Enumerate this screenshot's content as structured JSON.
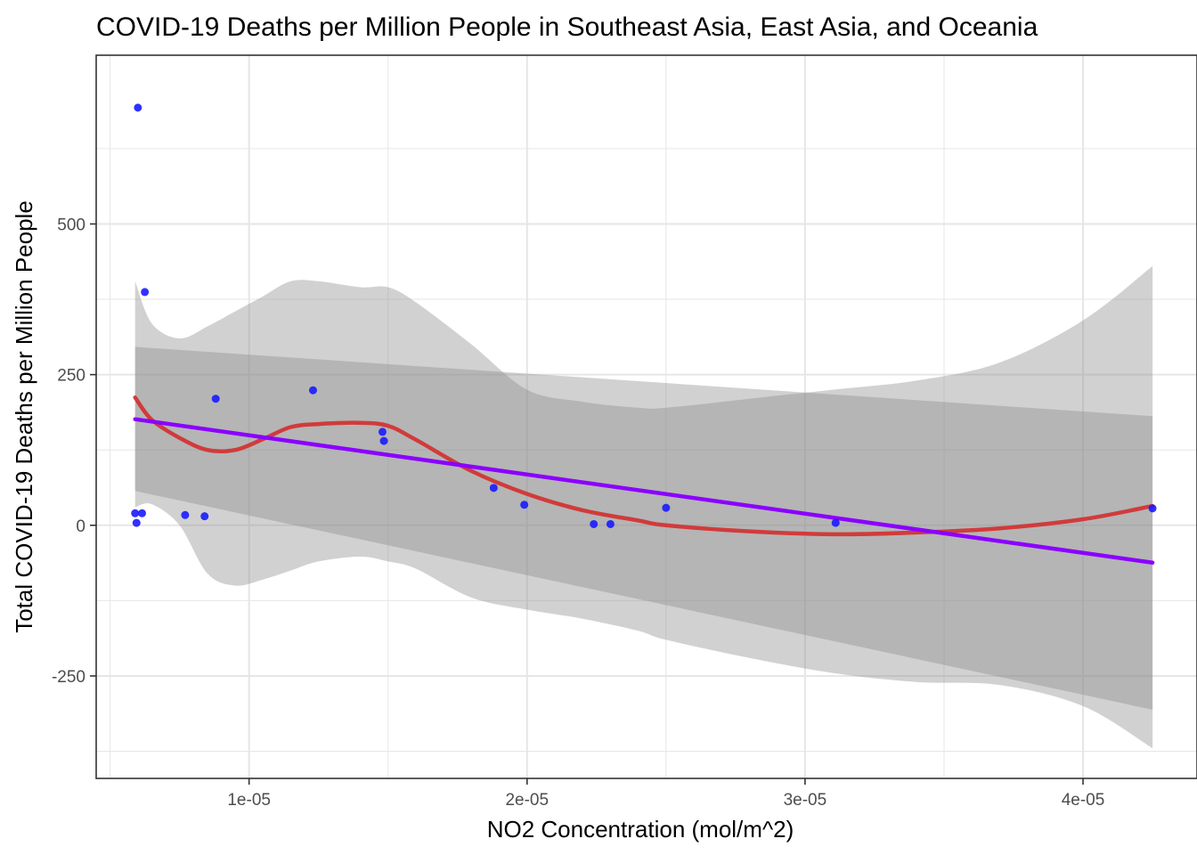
{
  "chart_data": {
    "type": "scatter",
    "title": "COVID-19 Deaths per Million People in Southeast Asia, East Asia, and Oceania",
    "xlabel": "NO2 Concentration (mol/m^2)",
    "ylabel": "Total COVID-19 Deaths per Million People",
    "xlim": [
      4.5e-06,
      4.41e-05
    ],
    "ylim": [
      -420,
      780
    ],
    "x_ticks": [
      1e-05,
      2e-05,
      3e-05,
      4e-05
    ],
    "x_tick_labels": [
      "1e-05",
      "2e-05",
      "3e-05",
      "4e-05"
    ],
    "y_ticks": [
      -250,
      0,
      250,
      500
    ],
    "y_tick_labels": [
      "-250",
      "0",
      "250",
      "500"
    ],
    "grid": true,
    "legend": "none",
    "colors": {
      "points": "#1a1aff",
      "loess": "#d13b3b",
      "linear": "#8b00ff",
      "ribbon": "#8c8c8c",
      "grid": "#e6e6e6",
      "border": "#333333"
    },
    "series": [
      {
        "kind": "points",
        "x": [
          5.9e-06,
          5.95e-06,
          6.15e-06,
          6e-06,
          6.25e-06,
          7.7e-06,
          8.4e-06,
          8.8e-06,
          1.23e-05,
          1.48e-05,
          1.485e-05,
          1.88e-05,
          1.99e-05,
          2.24e-05,
          2.3e-05,
          2.5e-05,
          3.11e-05,
          4.25e-05
        ],
        "y": [
          20,
          4,
          20,
          693,
          387,
          17,
          15,
          210,
          224,
          155,
          140,
          62,
          34,
          2,
          2,
          29,
          4,
          28
        ]
      },
      {
        "kind": "loess",
        "x": [
          5.9e-06,
          6.5e-06,
          7.5e-06,
          8.5e-06,
          9.5e-06,
          1.05e-05,
          1.15e-05,
          1.25e-05,
          1.4e-05,
          1.5e-05,
          1.6e-05,
          1.8e-05,
          2e-05,
          2.2e-05,
          2.4e-05,
          2.5e-05,
          2.8e-05,
          3.1e-05,
          3.4e-05,
          3.7e-05,
          4e-05,
          4.25e-05
        ],
        "y": [
          212,
          175,
          145,
          125,
          125,
          143,
          163,
          168,
          170,
          165,
          142,
          90,
          52,
          25,
          8,
          0,
          -10,
          -15,
          -12,
          -5,
          10,
          32
        ],
        "band_upper": [
          405,
          335,
          310,
          330,
          355,
          380,
          405,
          405,
          395,
          395,
          370,
          300,
          225,
          205,
          195,
          195,
          210,
          225,
          240,
          270,
          340,
          430
        ],
        "band_lower": [
          30,
          35,
          0,
          -80,
          -100,
          -90,
          -75,
          -60,
          -52,
          -60,
          -72,
          -120,
          -140,
          -155,
          -175,
          -190,
          -220,
          -245,
          -260,
          -265,
          -300,
          -370
        ]
      },
      {
        "kind": "linear",
        "x": [
          5.9e-06,
          4.25e-05
        ],
        "y": [
          176,
          -62
        ],
        "band_upper": [
          296,
          181
        ],
        "band_lower": [
          57,
          -306
        ]
      }
    ]
  }
}
